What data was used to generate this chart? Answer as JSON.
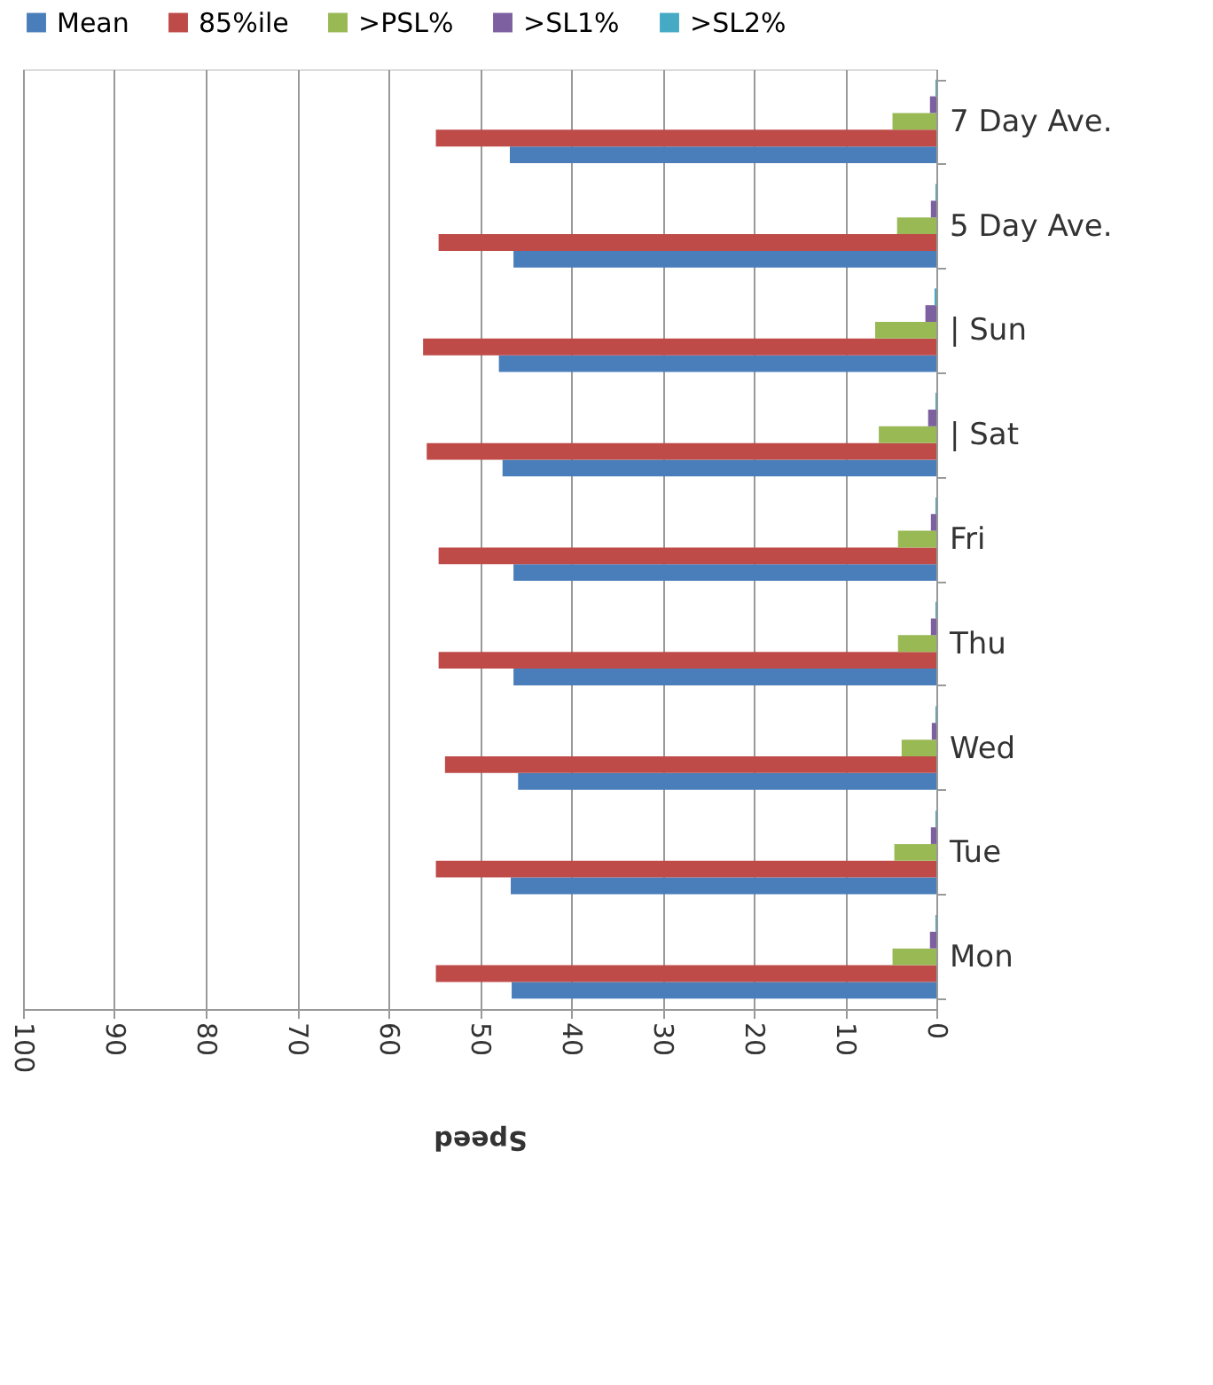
{
  "chart_data": {
    "type": "bar",
    "orientation": "horizontal",
    "xlabel": "Speed",
    "categories": [
      "7 Day Ave.",
      "5 Day Ave.",
      "| Sun",
      "| Sat",
      "Fri",
      "Thu",
      "Wed",
      "Tue",
      "Mon"
    ],
    "series": [
      {
        "name": "Mean",
        "color": "#4a7ebb",
        "values": [
          46.7,
          46.3,
          47.9,
          47.5,
          46.3,
          46.3,
          45.8,
          46.6,
          46.5
        ]
      },
      {
        "name": "85%ile",
        "color": "#be4b48",
        "values": [
          54.8,
          54.5,
          56.2,
          55.8,
          54.5,
          54.5,
          53.8,
          54.8,
          54.8
        ]
      },
      {
        "name": ">PSL%",
        "color": "#98b954",
        "values": [
          4.8,
          4.3,
          6.7,
          6.3,
          4.2,
          4.2,
          3.8,
          4.6,
          4.8
        ]
      },
      {
        "name": ">SL1%",
        "color": "#7d60a0",
        "values": [
          0.7,
          0.6,
          1.2,
          0.9,
          0.6,
          0.6,
          0.5,
          0.6,
          0.7
        ]
      },
      {
        "name": ">SL2%",
        "color": "#46aac5",
        "values": [
          0.1,
          0.1,
          0.2,
          0.1,
          0.1,
          0.1,
          0.1,
          0.1,
          0.1
        ]
      }
    ],
    "xlim": [
      100,
      0
    ],
    "xticks": [
      100,
      90,
      80,
      70,
      60,
      50,
      40,
      30,
      20,
      10,
      0
    ],
    "grid": "x",
    "legend": "top"
  }
}
